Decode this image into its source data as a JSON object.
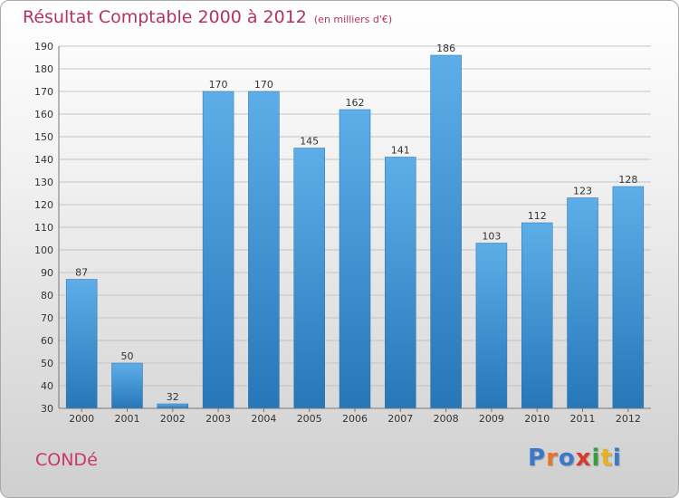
{
  "title": "Résultat Comptable 2000 à 2012",
  "subtitle": "(en milliers d'€)",
  "commune": "CONDé",
  "logo": {
    "text": "Proxiti",
    "colors": [
      "#3a78c8",
      "#e8732a",
      "#3a78c8",
      "#d93a2b",
      "#3a9c3a",
      "#e8b21f",
      "#3a78c8"
    ]
  },
  "colors": {
    "bar_top": "#5daee8",
    "bar_bottom": "#2677b8",
    "title": "#b5315f",
    "commune": "#c8386b"
  },
  "chart_data": {
    "type": "bar",
    "categories": [
      "2000",
      "2001",
      "2002",
      "2003",
      "2004",
      "2005",
      "2006",
      "2007",
      "2008",
      "2009",
      "2010",
      "2011",
      "2012"
    ],
    "values": [
      87,
      50,
      32,
      170,
      170,
      145,
      162,
      141,
      186,
      103,
      112,
      123,
      128
    ],
    "title": "Résultat Comptable 2000 à 2012",
    "ylabel": "en milliers d'€",
    "ylim": [
      30,
      190
    ],
    "yticks": [
      30,
      40,
      50,
      60,
      70,
      80,
      90,
      100,
      110,
      120,
      130,
      140,
      150,
      160,
      170,
      180,
      190
    ],
    "grid": true
  }
}
